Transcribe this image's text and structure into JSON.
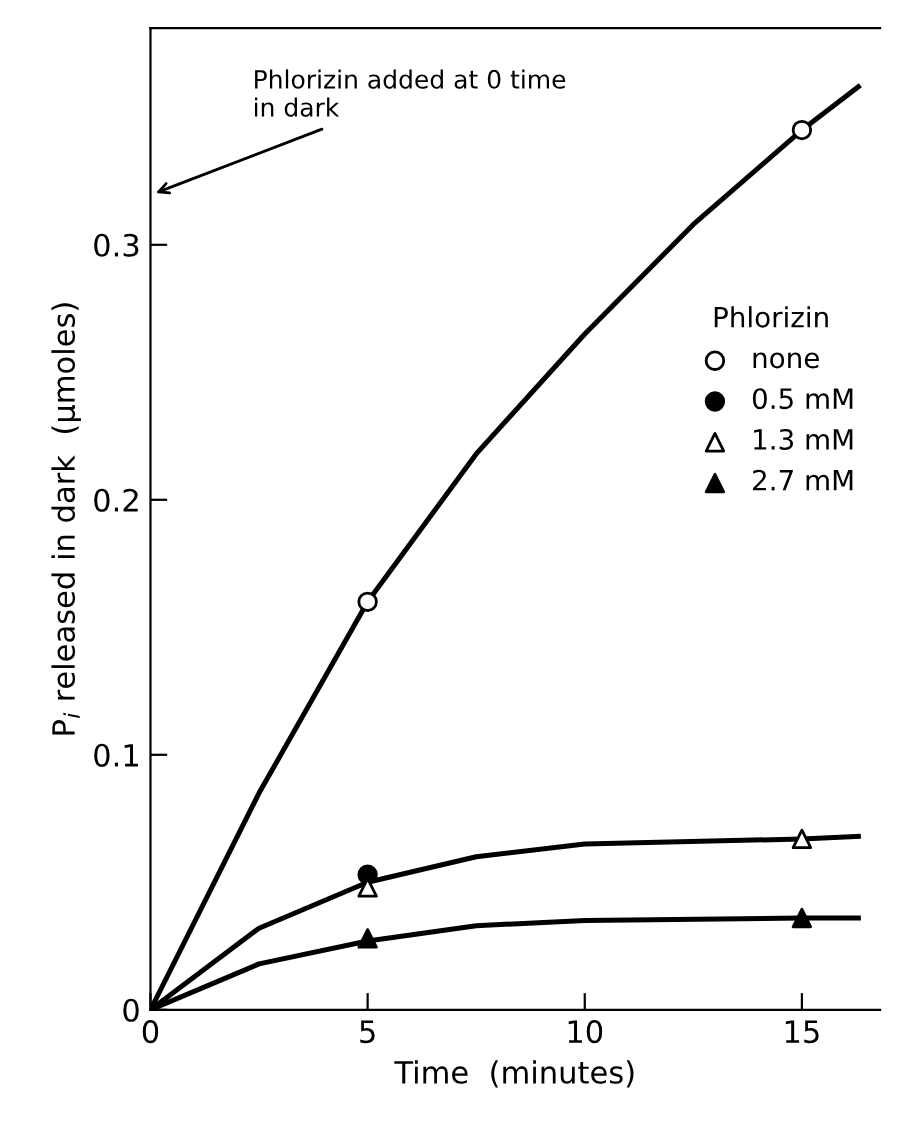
{
  "chart_data": {
    "type": "scatter",
    "xlabel": "Time  (minutes)",
    "ylabel": "P$_{i}$ released in dark  (μmoles)",
    "legend_title": "Phlorizin",
    "legend": "right",
    "xlim": [
      0,
      16.8
    ],
    "xticks": [
      0,
      5,
      10,
      15
    ],
    "ylim": [
      0,
      0.385
    ],
    "yticks": [
      0,
      0.1,
      0.2,
      0.3
    ],
    "grid": false,
    "annotations": [
      "Phlorizin added at 0 time\nin dark"
    ],
    "series": [
      {
        "name": "none",
        "color": "#ffffff",
        "marker": "circle",
        "x": [
          5,
          15
        ],
        "values": [
          0.16,
          0.345
        ]
      },
      {
        "name": "0.5 mM",
        "color": "#000000",
        "marker": "circle",
        "x": [
          5
        ],
        "values": [
          0.053
        ]
      },
      {
        "name": "1.3 mM",
        "color": "#ffffff",
        "marker": "triangle",
        "x": [
          5,
          15
        ],
        "values": [
          0.048,
          0.067
        ]
      },
      {
        "name": "2.7 mM",
        "color": "#000000",
        "marker": "triangle",
        "x": [
          5,
          15
        ],
        "values": [
          0.028,
          0.036
        ]
      },
      {
        "type": "line",
        "color": "#000000",
        "marker": "none",
        "line_style": "solid",
        "x": [
          0,
          2.5,
          5,
          7.5,
          10,
          12.5,
          15,
          16.3
        ],
        "values": [
          0,
          0.085,
          0.16,
          0.218,
          0.265,
          0.308,
          0.345,
          0.362
        ]
      },
      {
        "type": "line",
        "color": "#000000",
        "marker": "none",
        "line_style": "solid",
        "x": [
          0,
          2.5,
          5,
          7.5,
          10,
          15,
          16.3
        ],
        "values": [
          0,
          0.032,
          0.05,
          0.06,
          0.065,
          0.067,
          0.068
        ]
      },
      {
        "type": "line",
        "color": "#000000",
        "marker": "none",
        "line_style": "solid",
        "x": [
          0,
          2.5,
          5,
          7.5,
          10,
          15,
          16.3
        ],
        "values": [
          0,
          0.018,
          0.027,
          0.033,
          0.035,
          0.036,
          0.036
        ]
      }
    ]
  }
}
